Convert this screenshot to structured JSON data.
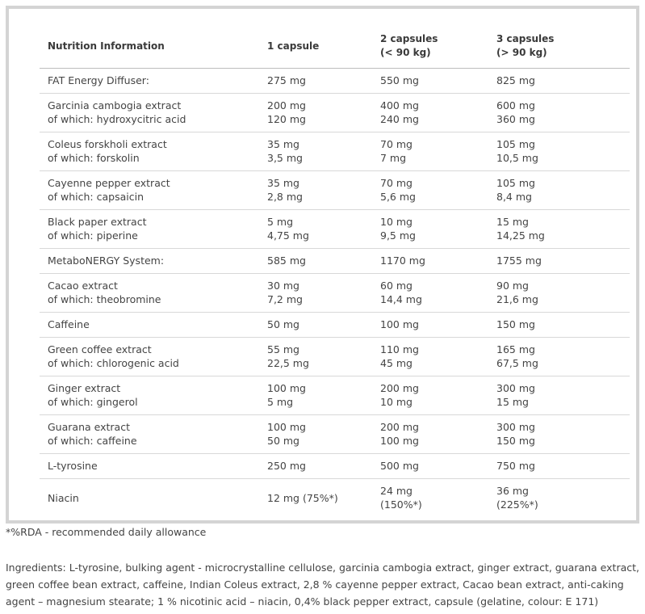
{
  "table": {
    "header": [
      [
        "Nutrition Information"
      ],
      [
        "1 capsule"
      ],
      [
        "2 capsules",
        "(< 90 kg)"
      ],
      [
        "3 capsules",
        "(> 90 kg)"
      ]
    ],
    "rows": [
      [
        [
          "FAT Energy Diffuser:"
        ],
        [
          "275 mg"
        ],
        [
          "550  mg"
        ],
        [
          "825 mg"
        ]
      ],
      [
        [
          "Garcinia cambogia extract",
          "of which: hydroxycitric acid"
        ],
        [
          "200 mg",
          "120 mg"
        ],
        [
          "400 mg",
          "240 mg"
        ],
        [
          "600 mg",
          "360 mg"
        ]
      ],
      [
        [
          "Coleus forskholi extract",
          "of which: forskolin"
        ],
        [
          "35 mg",
          "3,5 mg"
        ],
        [
          "70 mg",
          "7 mg"
        ],
        [
          "105 mg",
          "10,5 mg"
        ]
      ],
      [
        [
          "Cayenne pepper extract",
          "of which: capsaicin"
        ],
        [
          "35 mg",
          "2,8 mg"
        ],
        [
          "70 mg",
          "5,6 mg"
        ],
        [
          "105 mg",
          "8,4 mg"
        ]
      ],
      [
        [
          "Black paper extract",
          "of which: piperine"
        ],
        [
          "5 mg",
          "4,75 mg"
        ],
        [
          "10 mg",
          "9,5 mg"
        ],
        [
          "15 mg",
          "14,25 mg"
        ]
      ],
      [
        [
          "MetaboNERGY System:"
        ],
        [
          "585 mg"
        ],
        [
          "1170 mg"
        ],
        [
          "1755 mg"
        ]
      ],
      [
        [
          "Cacao extract",
          "of which: theobromine"
        ],
        [
          "30 mg",
          "7,2 mg"
        ],
        [
          "60 mg",
          "14,4 mg"
        ],
        [
          "90 mg",
          "21,6 mg"
        ]
      ],
      [
        [
          "Caffeine"
        ],
        [
          "50 mg"
        ],
        [
          "100 mg"
        ],
        [
          "150 mg"
        ]
      ],
      [
        [
          "Green coffee extract",
          "of which: chlorogenic acid"
        ],
        [
          "55 mg",
          "22,5 mg"
        ],
        [
          "110 mg",
          "45 mg"
        ],
        [
          "165 mg",
          "67,5 mg"
        ]
      ],
      [
        [
          "Ginger extract",
          "of which: gingerol"
        ],
        [
          "100 mg",
          "5 mg"
        ],
        [
          "200 mg",
          "10 mg"
        ],
        [
          "300 mg",
          "15 mg"
        ]
      ],
      [
        [
          "Guarana extract",
          "of which: caffeine"
        ],
        [
          "100 mg",
          "50 mg"
        ],
        [
          "200 mg",
          "100 mg"
        ],
        [
          "300 mg",
          "150 mg"
        ]
      ],
      [
        [
          "L-tyrosine"
        ],
        [
          "250 mg"
        ],
        [
          "500 mg"
        ],
        [
          "750 mg"
        ]
      ],
      [
        [
          "Niacin"
        ],
        [
          "12 mg (75%*)"
        ],
        [
          "24 mg",
          "(150%*)"
        ],
        [
          "36 mg",
          "(225%*)"
        ]
      ]
    ]
  },
  "footnote": "*%RDA - recommended daily allowance",
  "ingredients": "Ingredients:  L-tyrosine, bulking agent - microcrystalline cellulose, garcinia cambogia extract, ginger extract, guarana extract, green coffee bean extract, caffeine, Indian Coleus extract, 2,8 % cayenne pepper extract, Cacao bean extract, anti-caking agent – magnesium stearate; 1 % nicotinic acid – niacin, 0,4% black pepper extract, capsule (gelatine, colour: E 171)"
}
